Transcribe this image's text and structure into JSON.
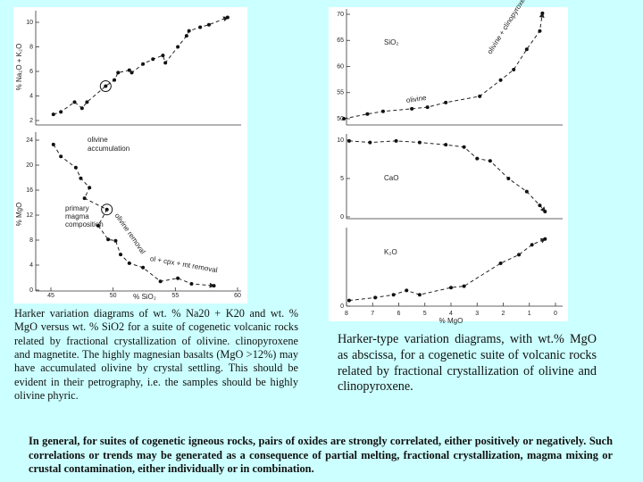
{
  "chart_data": [
    {
      "type": "scatter",
      "ylabel": "% Na₂O + K₂O",
      "x": [
        45.2,
        45.8,
        46.9,
        47.5,
        47.9,
        49.4,
        50.1,
        50.4,
        51.3,
        51.5,
        52.4,
        53.2,
        54.0,
        54.2,
        55.2,
        55.9,
        56.1,
        57.0,
        57.7,
        59.2
      ],
      "values": [
        2.5,
        2.7,
        3.5,
        3.0,
        3.5,
        4.8,
        5.3,
        5.9,
        6.1,
        5.9,
        6.6,
        7.0,
        7.3,
        6.7,
        8.0,
        8.9,
        9.3,
        9.6,
        9.8,
        10.4
      ],
      "circled": 5,
      "xlim": [
        45,
        60
      ],
      "ylim": [
        2,
        10
      ],
      "yticks": [
        2,
        4,
        6,
        8,
        10
      ]
    },
    {
      "type": "scatter",
      "ylabel": "% MgO",
      "xlabel": "% SiO₂",
      "x": [
        45.2,
        45.8,
        47.0,
        47.4,
        48.1,
        47.7,
        49.5,
        48.8,
        49.6,
        50.2,
        50.6,
        51.3,
        52.4,
        53.8,
        55.2,
        56.3,
        58.1
      ],
      "values": [
        23.3,
        21.4,
        19.6,
        17.9,
        16.4,
        14.7,
        12.9,
        10.3,
        8.1,
        7.9,
        5.7,
        4.3,
        3.6,
        1.4,
        1.9,
        1.0,
        0.7
      ],
      "circled": 6,
      "xlim": [
        45,
        60
      ],
      "xticks": [
        45,
        50,
        55,
        60
      ],
      "ylim": [
        0,
        24
      ],
      "yticks": [
        0,
        4,
        8,
        12,
        16,
        20,
        24
      ],
      "annotations": [
        "olivine",
        "accumulation",
        "primary",
        "magma",
        "composition",
        "olivine removal",
        "ol + cpx + mt removal"
      ]
    },
    {
      "type": "scatter",
      "x": [
        8.1,
        7.2,
        6.6,
        5.5,
        4.9,
        4.2,
        2.9,
        2.1,
        1.6,
        1.1,
        0.6,
        0.5
      ],
      "values": [
        50,
        50.9,
        51.4,
        51.9,
        52.2,
        53.1,
        54.3,
        57.4,
        59.4,
        63.3,
        66.8,
        70.2
      ],
      "xlim": [
        8,
        0
      ],
      "ylim": [
        50,
        70
      ],
      "yticks": [
        50,
        55,
        60,
        65,
        70
      ],
      "annotations": [
        "SiO₂",
        "olivine",
        "olivine + clinopyroxene"
      ]
    },
    {
      "type": "scatter",
      "x": [
        7.9,
        7.1,
        6.1,
        5.2,
        4.2,
        3.5,
        3.0,
        2.5,
        1.8,
        1.1,
        0.6,
        0.4
      ],
      "values": [
        9.9,
        9.7,
        9.9,
        9.7,
        9.4,
        9.1,
        7.6,
        7.3,
        5.0,
        3.3,
        1.5,
        0.7
      ],
      "xlim": [
        8,
        0
      ],
      "ylim": [
        0,
        10
      ],
      "yticks": [
        0,
        5,
        10
      ],
      "annotations": [
        "CaO"
      ]
    },
    {
      "type": "scatter",
      "xlabel": "% MgO",
      "x": [
        7.9,
        6.9,
        6.2,
        5.7,
        5.2,
        4.0,
        3.5,
        2.1,
        1.4,
        0.9,
        0.4
      ],
      "values": [
        0.4,
        0.6,
        0.8,
        1.1,
        0.8,
        1.3,
        1.4,
        3.0,
        3.6,
        4.3,
        4.7
      ],
      "xlim": [
        8,
        0
      ],
      "xticks": [
        8,
        7,
        6,
        5,
        4,
        3,
        2,
        1,
        0
      ],
      "ylim": [
        0,
        5
      ],
      "yticks": [
        0
      ],
      "annotations": [
        "K₂O"
      ]
    }
  ],
  "captions": {
    "left": "Harker variation diagrams of wt. % Na20 + K20 and wt. % MgO versus wt. % SiO2 for a suite of cogenetic volcanic rocks related by fractional crystallization of olivine. clinopyroxene and magnetite. The highly magnesian basalts (MgO >12%) may have accumulated olivine by crystal settling. This should be evident in their petrography, i.e. the samples should be highly olivine phyric.",
    "right": "Harker-type variation diagrams, with wt.% MgO as abscissa, for a cogenetic suite of volcanic rocks related by fractional crystallization of olivine and clinopyroxene.",
    "bottom": "In general, for suites of cogenetic igneous rocks, pairs of oxides are strongly correlated, either positively or negatively. Such correlations or trends may be generated as a consequence of partial melting, fractional crystallization, magma mixing or crustal contamination, either individually or in combination."
  }
}
